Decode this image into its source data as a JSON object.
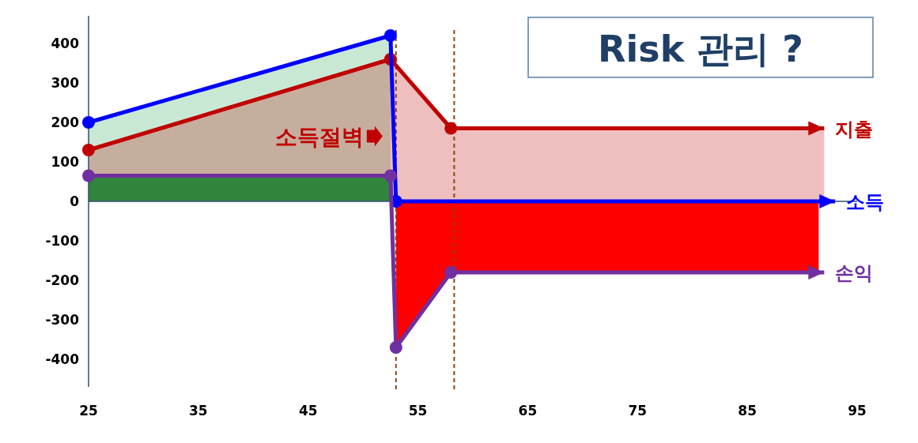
{
  "chart_data": {
    "type": "line",
    "title": "Risk 관리 ?",
    "xlim": [
      25,
      95
    ],
    "ylim": [
      -470,
      470
    ],
    "xticks": [
      25,
      35,
      45,
      55,
      65,
      75,
      85,
      95
    ],
    "yticks": [
      -400,
      -300,
      -200,
      -100,
      0,
      100,
      200,
      300,
      400
    ],
    "grid": false,
    "legend": "right",
    "series": [
      {
        "type": "area",
        "color": "#c9e8d4",
        "x": [
          25,
          52.5
        ],
        "values": [
          200,
          420
        ]
      },
      {
        "type": "area",
        "color": "#00b050",
        "x": [
          25,
          52.5
        ],
        "values": [
          65,
          65
        ]
      },
      {
        "type": "area",
        "color": "#ff0000",
        "x": [
          53,
          58,
          91.5
        ],
        "values": [
          -370,
          -180,
          -180
        ]
      },
      {
        "name": "지출",
        "type": "area",
        "marker": "circle",
        "color": "#c00000",
        "x": [
          25,
          52.5,
          58,
          92
        ],
        "values": [
          130,
          360,
          185,
          185
        ]
      },
      {
        "name": "소득",
        "marker": "circle",
        "color": "#0000ff",
        "x": [
          25,
          52.5,
          53,
          93
        ],
        "values": [
          200,
          420,
          0,
          0
        ]
      },
      {
        "name": "손익",
        "marker": "circle",
        "color": "#7030a0",
        "x": [
          25,
          52.5,
          53,
          58,
          92
        ],
        "values": [
          65,
          65,
          -370,
          -180,
          -180
        ]
      }
    ],
    "ref_lines": [
      {
        "axis": "y",
        "value": 0,
        "color": "#2f4f6f",
        "line_style": "solid"
      },
      {
        "axis": "x",
        "value": 53,
        "color": "#8b4513",
        "line_style": "dashed"
      },
      {
        "axis": "x",
        "value": 58.3,
        "color": "#8b4513",
        "line_style": "dashed"
      }
    ],
    "annotations": [
      {
        "text": "소득절벽",
        "x": 52.5,
        "y": 165
      }
    ]
  }
}
